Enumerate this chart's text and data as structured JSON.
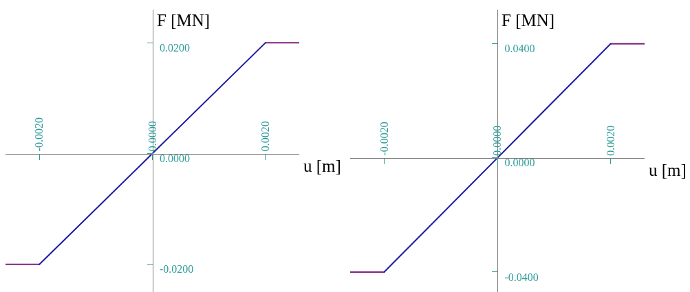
{
  "chart_data": [
    {
      "type": "line",
      "xlabel": "u [m]",
      "ylabel": "F [MN]",
      "x": [
        -0.0026,
        -0.002,
        0,
        0.002,
        0.0026
      ],
      "series": [
        {
          "color": "#802080",
          "values": [
            -0.02,
            -0.02,
            null,
            0.02,
            0.02
          ]
        },
        {
          "color": "#1a1aa0",
          "values": [
            null,
            -0.02,
            0,
            0.02,
            null
          ]
        }
      ],
      "xlim": [
        -0.0026,
        0.0026
      ],
      "ylim": [
        -0.025,
        0.026
      ],
      "xticks": [
        {
          "value": -0.002,
          "label": "-0.0020"
        },
        {
          "value": 0,
          "label": "0.0000"
        },
        {
          "value": 0.002,
          "label": "0.0020"
        }
      ],
      "yticks": [
        {
          "value": -0.02,
          "label": "-0.0200"
        },
        {
          "value": 0,
          "label": "0.0000"
        },
        {
          "value": 0.02,
          "label": "0.0200"
        }
      ]
    },
    {
      "type": "line",
      "xlabel": "u [m]",
      "ylabel": "F [MN]",
      "x": [
        -0.0026,
        -0.002,
        0,
        0.002,
        0.0026
      ],
      "series": [
        {
          "color": "#802080",
          "values": [
            -0.04,
            -0.04,
            null,
            0.04,
            0.04
          ]
        },
        {
          "color": "#1a1aa0",
          "values": [
            null,
            -0.04,
            0,
            0.04,
            null
          ]
        }
      ],
      "xlim": [
        -0.0026,
        0.0026
      ],
      "ylim": [
        -0.047,
        0.052
      ],
      "xticks": [
        {
          "value": -0.002,
          "label": "-0.0020"
        },
        {
          "value": 0,
          "label": "0.0000"
        },
        {
          "value": 0.002,
          "label": "0.0020"
        }
      ],
      "yticks": [
        {
          "value": -0.04,
          "label": "-0.0400"
        },
        {
          "value": 0,
          "label": "0.0000"
        },
        {
          "value": 0.04,
          "label": "0.0400"
        }
      ]
    }
  ]
}
